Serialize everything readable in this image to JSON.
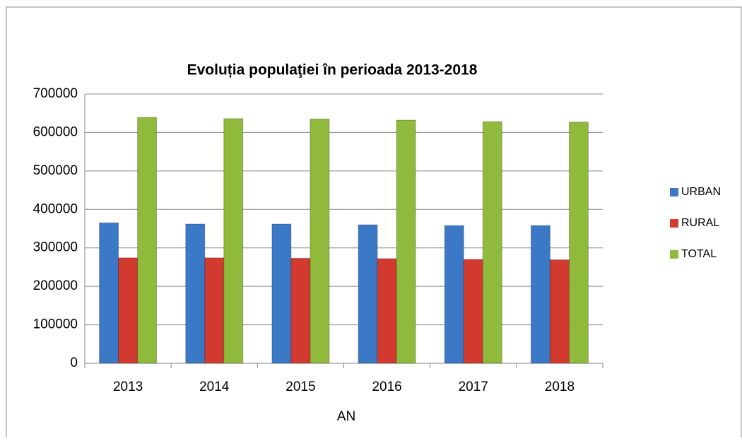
{
  "chart_data": {
    "type": "bar",
    "title": "Evoluția populaţiei în perioada 2013-2018",
    "x_label": "AN",
    "categories": [
      "2013",
      "2014",
      "2015",
      "2016",
      "2017",
      "2018"
    ],
    "series": [
      {
        "name": "URBAN",
        "color": "#3b78c6",
        "values": [
          365000,
          362000,
          362000,
          360000,
          358000,
          358000
        ]
      },
      {
        "name": "RURAL",
        "color": "#d33a2f",
        "values": [
          274000,
          274000,
          273000,
          272000,
          270000,
          269000
        ]
      },
      {
        "name": "TOTAL",
        "color": "#8fba3b",
        "values": [
          639000,
          636000,
          635000,
          632000,
          628000,
          627000
        ]
      }
    ],
    "ylim": [
      0,
      700000
    ],
    "yticks": [
      0,
      100000,
      200000,
      300000,
      400000,
      500000,
      600000,
      700000
    ],
    "grid": true,
    "legend": "right"
  }
}
